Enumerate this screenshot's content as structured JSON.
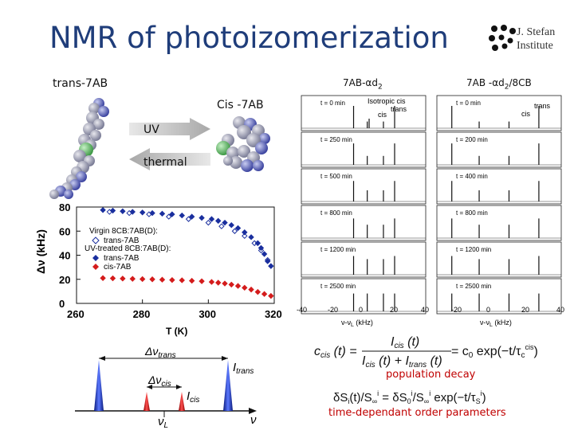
{
  "title": "NMR of photoizomerization",
  "institute": {
    "line1": "J. Stefan",
    "line2": "Institute"
  },
  "labels": {
    "trans": "trans-7AB",
    "cis": "Cis -7AB",
    "uv": "UV",
    "thermal": "thermal",
    "col1_main": "7AB-αd",
    "col1_sub": "2",
    "col2_main": "7AB -αd",
    "col2_sub": "2",
    "col2_tail": "/8CB"
  },
  "spectra": {
    "col1_times": [
      "t = 0 min",
      "t = 250 min",
      "t = 500 min",
      "t = 800 min",
      "t = 1200 min",
      "t = 2500 min"
    ],
    "col2_times": [
      "t = 0 min",
      "t = 200 min",
      "t = 400 min",
      "t = 800 min",
      "t = 1200 min",
      "t = 2500 min"
    ],
    "annotations": {
      "isotropic": "Isotropic cis",
      "trans": "trans",
      "cis": "cis",
      "trans2": "trans",
      "cis2": "cis"
    },
    "xticks1": [
      "-40",
      "-20",
      "0",
      "20",
      "40"
    ],
    "xticks2": [
      "-20",
      "0",
      "20",
      "40"
    ],
    "xlabel1": "ν-ν",
    "xlabel1_sub": "L",
    "xlabel1_unit": " (kHz)",
    "xlabel2": "ν-ν",
    "xlabel2_sub": "L",
    "xlabel2_unit": " (kHz)"
  },
  "chart_data": {
    "type": "scatter",
    "xlabel": "T (K)",
    "ylabel": "Δν (kHz)",
    "xlim": [
      260,
      320
    ],
    "ylim": [
      0,
      80
    ],
    "xticks": [
      "260",
      "280",
      "300",
      "320"
    ],
    "yticks": [
      "0",
      "20",
      "40",
      "60",
      "80"
    ],
    "legend": {
      "group1": "Virgin 8CB:7AB(D):",
      "group2": "UV-treated 8CB:7AB(D):"
    },
    "series": [
      {
        "name": "trans-7AB",
        "color": "#1a2f9e",
        "marker": "open-diamond",
        "x": [
          270,
          276,
          282,
          288,
          294,
          300,
          304,
          308,
          311,
          314,
          316,
          318
        ],
        "y": [
          76,
          75,
          74,
          72,
          70,
          67,
          64,
          60,
          56,
          50,
          44,
          36
        ]
      },
      {
        "name": "trans-7AB",
        "color": "#1a2f9e",
        "marker": "filled-diamond",
        "x": [
          268,
          271,
          274,
          277,
          280,
          283,
          286,
          289,
          292,
          295,
          298,
          301,
          303,
          305,
          307,
          309,
          311,
          313,
          315,
          316,
          317,
          318,
          319
        ],
        "y": [
          77.5,
          77,
          76.5,
          76,
          75.5,
          75,
          74.5,
          74,
          73,
          72,
          71,
          70,
          68.5,
          67,
          65,
          62.5,
          59,
          55,
          50,
          46,
          41,
          35,
          31
        ]
      },
      {
        "name": "cis-7AB",
        "color": "#d41c1c",
        "marker": "filled-diamond",
        "x": [
          268,
          271,
          274,
          277,
          280,
          283,
          286,
          289,
          292,
          295,
          298,
          301,
          303,
          305,
          307,
          309,
          311,
          313,
          315,
          317,
          319
        ],
        "y": [
          21,
          20.8,
          20.6,
          20.4,
          20.2,
          20,
          19.7,
          19.4,
          19.2,
          18.8,
          18.4,
          17.8,
          17.2,
          16.5,
          15.6,
          14.5,
          13,
          11.5,
          9.5,
          7.8,
          6.2
        ]
      }
    ]
  },
  "bottom_diagram": {
    "delta_trans_main": "Δν",
    "delta_trans_sub": "trans",
    "delta_cis_main": "Δν",
    "delta_cis_sub": "cis",
    "i_trans_main": "I",
    "i_trans_sub": "trans",
    "i_cis_main": "I",
    "i_cis_sub": "cis",
    "nu_l_main": "ν",
    "nu_l_sub": "L",
    "nu_axis": "ν"
  },
  "equations": {
    "eq1_lhs": "c",
    "eq1_lhs_sub": "cis",
    "eq1_arg": " (t) = ",
    "eq1_num": "I",
    "eq1_num_sub": "cis",
    "eq1_num_arg": " (t)",
    "eq1_den": "I",
    "eq1_den_sub": "cis",
    "eq1_den_mid": " (t) + I",
    "eq1_den_sub2": "trans",
    "eq1_den_arg": " (t)",
    "eq1_rhs": " = c",
    "eq1_rhs_sub": "0",
    "eq1_rhs_tail": " exp(−t/τ",
    "eq1_tau_sub": "c",
    "eq1_tau_sup": "cis",
    "eq1_close": ")",
    "caption1": "population decay",
    "eq2": "δS",
    "eq2_sub": "i",
    "eq2_mid": "(t)/S",
    "eq2_sub2": "∞",
    "eq2_sup2": "i",
    "eq2_mid2": " = δS",
    "eq2_sub3": "0",
    "eq2_sup3": "i",
    "eq2_mid3": "/S",
    "eq2_sub4": "∞",
    "eq2_sup4": "i",
    "eq2_tail": " exp(−t/τ",
    "eq2_tau_sub": "S",
    "eq2_tau_sup": "i",
    "eq2_close": ")",
    "caption2": "time-dependant order parameters"
  },
  "colors": {
    "title": "#1f3d7a",
    "caption": "#c00000",
    "trans": "#1a2f9e",
    "cis": "#d41c1c"
  }
}
